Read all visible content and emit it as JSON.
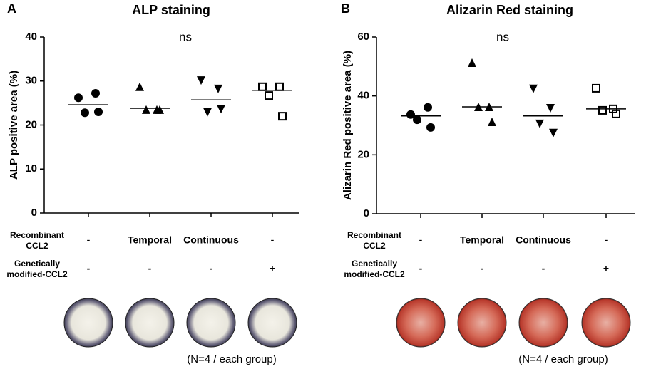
{
  "panels": [
    "A",
    "B"
  ],
  "note": "(N=4 / each group)",
  "chart_data": [
    {
      "type": "strip",
      "title": "ALP staining",
      "ylabel": "ALP positive area (%)",
      "annotation": "ns",
      "ylim": [
        0,
        40
      ],
      "yticks": [
        0,
        10,
        20,
        30,
        40
      ],
      "color": "#000000",
      "categories": [
        null,
        null,
        null,
        null
      ],
      "groups": [
        {
          "marker": "circle",
          "values": [
            26.2,
            27.2,
            22.8,
            23.0
          ],
          "center": 24.6
        },
        {
          "marker": "triangle-up",
          "values": [
            28.7,
            23.5,
            23.5,
            23.5
          ],
          "center": 23.8
        },
        {
          "marker": "triangle-down",
          "values": [
            30.1,
            28.2,
            22.9,
            23.6
          ],
          "center": 25.7
        },
        {
          "marker": "square-open",
          "values": [
            28.7,
            28.7,
            26.7,
            22.0
          ],
          "center": 27.9
        }
      ],
      "conditions": [
        {
          "label": "Recombinant CCL2",
          "values": [
            "-",
            "Temporal",
            "Continuous",
            "-"
          ]
        },
        {
          "label": "Genetically modified-CCL2",
          "values": [
            "-",
            "-",
            "-",
            "+"
          ]
        }
      ]
    },
    {
      "type": "strip",
      "title": "Alizarin Red staining",
      "ylabel": "Alizarin Red positive area (%)",
      "annotation": "ns",
      "ylim": [
        0,
        60
      ],
      "yticks": [
        0,
        20,
        40,
        60
      ],
      "color": "#000000",
      "categories": [
        null,
        null,
        null,
        null
      ],
      "groups": [
        {
          "marker": "circle",
          "values": [
            33.7,
            36.1,
            31.9,
            29.3
          ],
          "center": 33.2
        },
        {
          "marker": "triangle-up",
          "values": [
            51.3,
            36.3,
            36.3,
            31.2
          ],
          "center": 36.3
        },
        {
          "marker": "triangle-down",
          "values": [
            42.4,
            35.8,
            30.5,
            27.4
          ],
          "center": 33.2
        },
        {
          "marker": "square-open",
          "values": [
            42.6,
            35.6,
            35.1,
            33.9
          ],
          "center": 35.6
        }
      ],
      "conditions": [
        {
          "label": "Recombinant CCL2",
          "values": [
            "-",
            "Temporal",
            "Continuous",
            "-"
          ]
        },
        {
          "label": "Genetically modified-CCL2",
          "values": [
            "-",
            "-",
            "-",
            "+"
          ]
        }
      ]
    }
  ]
}
